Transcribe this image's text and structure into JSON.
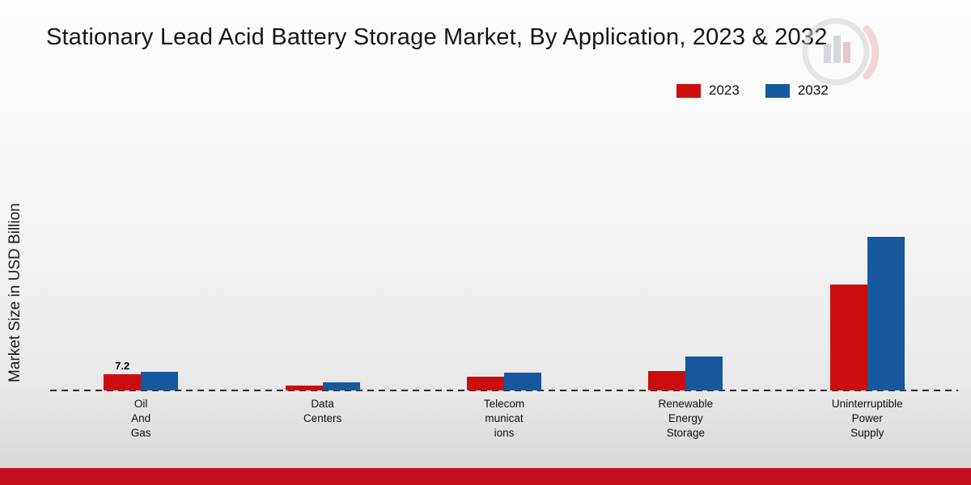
{
  "chart_data": {
    "type": "bar",
    "title": "Stationary Lead Acid Battery Storage Market, By Application, 2023 & 2032",
    "ylabel": "Market Size in USD Billion",
    "unit": "USD Billion",
    "legend_position": "top-right",
    "baseline_style": "dashed",
    "grid": false,
    "ylim": [
      0,
      75
    ],
    "categories": [
      {
        "lines": [
          "Oil",
          "And",
          "Gas"
        ]
      },
      {
        "lines": [
          "Data",
          "Centers"
        ]
      },
      {
        "lines": [
          "Telecom",
          "municat",
          "ions"
        ]
      },
      {
        "lines": [
          "Renewable",
          "Energy",
          "Storage"
        ]
      },
      {
        "lines": [
          "Uninterruptible",
          "Power",
          "Supply"
        ]
      }
    ],
    "series": [
      {
        "name": "2023",
        "color": "#cb0d10",
        "values": [
          7.2,
          2.2,
          6.1,
          8.6,
          47.0
        ],
        "value_labels": [
          "7.2",
          "",
          "",
          "",
          ""
        ]
      },
      {
        "name": "2032",
        "color": "#16579d",
        "values": [
          8.3,
          3.6,
          7.9,
          15.1,
          68.2
        ],
        "value_labels": [
          "",
          "",
          "",
          "",
          ""
        ]
      }
    ]
  },
  "decor": {
    "watermark_icon": "market-research-logo-watermark",
    "footer_accent_color": "#c20e1b"
  }
}
